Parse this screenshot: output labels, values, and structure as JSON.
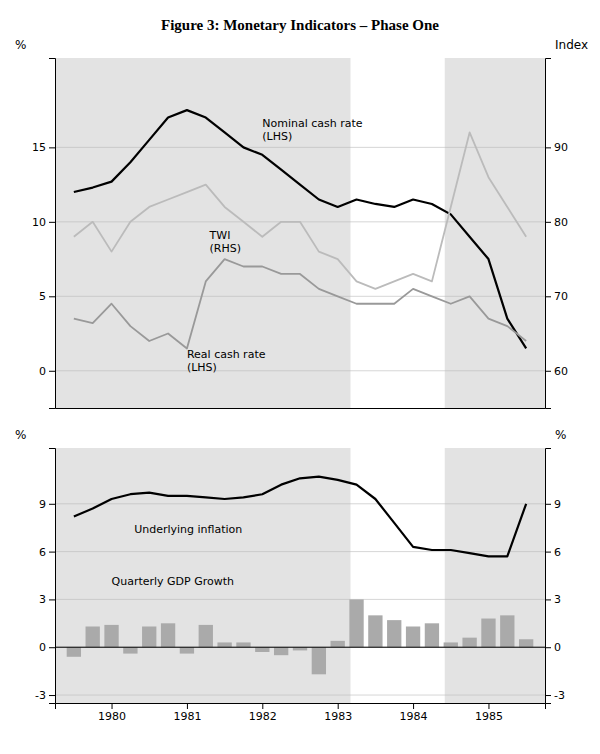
{
  "chart_data": [
    {
      "type": "line",
      "title": "Figure 3: Monetary Indicators – Phase One",
      "ylabel": "%",
      "y2label": "Index",
      "x": [
        1979.5,
        1979.75,
        1980.0,
        1980.25,
        1980.5,
        1980.75,
        1981.0,
        1981.25,
        1981.5,
        1981.75,
        1982.0,
        1982.25,
        1982.5,
        1982.75,
        1983.0,
        1983.25,
        1983.5,
        1983.75,
        1984.0,
        1984.25,
        1984.5,
        1984.75,
        1985.0,
        1985.25,
        1985.5
      ],
      "xlim": [
        1979.25,
        1985.75
      ],
      "xticks": [],
      "ylim": [
        -2.5,
        21
      ],
      "yticks": [
        0,
        5,
        10,
        15
      ],
      "y2lim": [
        55,
        102
      ],
      "y2ticks": [
        60,
        70,
        80,
        90
      ],
      "grid": true,
      "band": [
        1983.17,
        1984.42
      ],
      "series": [
        {
          "color": "#000000",
          "values": [
            12.0,
            12.3,
            12.7,
            14.0,
            15.5,
            17.0,
            17.5,
            17.0,
            16.0,
            15.0,
            14.5,
            13.5,
            12.5,
            11.5,
            11.0,
            11.5,
            11.2,
            11.0,
            11.5,
            11.2,
            10.5,
            9.0,
            7.5,
            3.5,
            1.5
          ]
        },
        {
          "color": "#999999",
          "values": [
            3.5,
            3.2,
            4.5,
            3.0,
            2.0,
            2.5,
            1.5,
            6.0,
            7.5,
            7.0,
            7.0,
            6.5,
            6.5,
            5.5,
            5.0,
            4.5,
            4.5,
            4.5,
            5.5,
            5.0,
            4.5,
            5.0,
            3.5,
            3.0,
            2.0
          ]
        },
        {
          "color": "#bbbbbb",
          "axis": "y2",
          "values": [
            78,
            80,
            76,
            80,
            82,
            83,
            84,
            85,
            82,
            80,
            78,
            80,
            80,
            76,
            75,
            72,
            71,
            72,
            73,
            72,
            82,
            92,
            86,
            82,
            78
          ]
        }
      ],
      "annotations": [
        {
          "x": 1982.0,
          "y": 17.0,
          "text": "Nominal cash rate\n(LHS)"
        },
        {
          "x": 1981.3,
          "y": 9.5,
          "text": "TWI\n(RHS)"
        },
        {
          "x": 1981.0,
          "y": 1.5,
          "text": "Real cash rate\n(LHS)"
        }
      ]
    },
    {
      "type": "bar",
      "ylabel": "%",
      "y2label": "%",
      "x": [
        1979.5,
        1979.75,
        1980.0,
        1980.25,
        1980.5,
        1980.75,
        1981.0,
        1981.25,
        1981.5,
        1981.75,
        1982.0,
        1982.25,
        1982.5,
        1982.75,
        1983.0,
        1983.25,
        1983.5,
        1983.75,
        1984.0,
        1984.25,
        1984.5,
        1984.75,
        1985.0,
        1985.25,
        1985.5
      ],
      "xlim": [
        1979.25,
        1985.75
      ],
      "xticks": [
        1980,
        1981,
        1982,
        1983,
        1984,
        1985
      ],
      "ylim": [
        -3.5,
        12.5
      ],
      "yticks": [
        -3,
        0,
        3,
        6,
        9
      ],
      "y2lim": [
        -3.5,
        12.5
      ],
      "y2ticks": [
        -3,
        0,
        3,
        6,
        9
      ],
      "grid": true,
      "band": [
        1983.17,
        1984.42
      ],
      "series": [
        {
          "type": "bar",
          "color": "#aaaaaa",
          "values": [
            -0.6,
            1.3,
            1.4,
            -0.4,
            1.3,
            1.5,
            -0.4,
            1.4,
            0.3,
            0.3,
            -0.3,
            -0.5,
            -0.2,
            -1.7,
            0.4,
            3.0,
            2.0,
            1.7,
            1.3,
            1.5,
            0.3,
            0.6,
            1.8,
            2.0,
            0.5
          ]
        },
        {
          "type": "line",
          "color": "#000000",
          "values": [
            8.2,
            8.7,
            9.3,
            9.6,
            9.7,
            9.5,
            9.5,
            9.4,
            9.3,
            9.4,
            9.6,
            10.2,
            10.6,
            10.7,
            10.5,
            10.2,
            9.3,
            7.8,
            6.3,
            6.1,
            6.1,
            5.9,
            5.7,
            5.7,
            9.0
          ]
        }
      ],
      "annotations": [
        {
          "x": 1980.3,
          "y": 7.8,
          "text": "Underlying inflation"
        },
        {
          "x": 1980.0,
          "y": 4.5,
          "text": "Quarterly GDP Growth"
        }
      ]
    }
  ]
}
